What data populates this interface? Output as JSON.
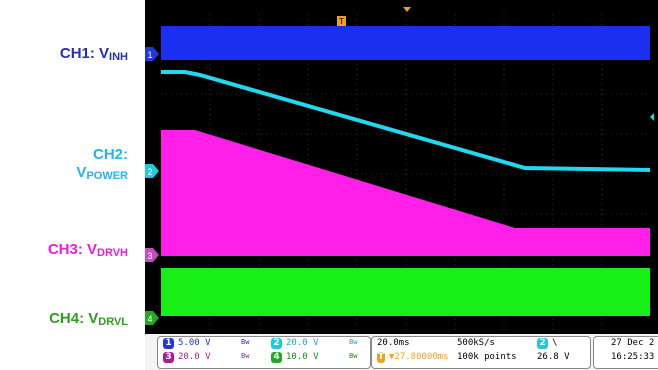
{
  "labels": {
    "ch1": {
      "text": "CH1: V",
      "sub": "INH"
    },
    "ch2": {
      "line1": "CH2:",
      "text": "V",
      "sub": "POWER"
    },
    "ch3": {
      "text": "CH3: V",
      "sub": "DRVH"
    },
    "ch4": {
      "text": "CH4: V",
      "sub": "DRVL"
    }
  },
  "colors": {
    "ch1": "#1a2ff0",
    "ch2": "#22d8ee",
    "ch3": "#ff1fe8",
    "ch4": "#18ee18",
    "trigger": "#f0a020"
  },
  "markers": {
    "trigger_top": "T",
    "ch1": "1",
    "ch2": "2",
    "ch3": "3",
    "ch4": "4"
  },
  "status": {
    "ch1": {
      "num": "1",
      "scale": "5.00 V",
      "bw": "Bw"
    },
    "ch3": {
      "num": "3",
      "scale": "20.0 V",
      "bw": "Bw"
    },
    "ch2": {
      "num": "2",
      "scale": "20.0 V",
      "bw": "Bw"
    },
    "ch4": {
      "num": "4",
      "scale": "10.0 V",
      "bw": "Bw"
    },
    "timebase": "20.0ms",
    "trigger_delay": "▼27.80000ms",
    "sample_rate": "500kS/s",
    "record_length": "100k points",
    "trigger_source": "2",
    "trigger_slope": "\\",
    "trigger_level": "26.8 V",
    "date": "27 Dec 2",
    "time": "16:25:33"
  }
}
